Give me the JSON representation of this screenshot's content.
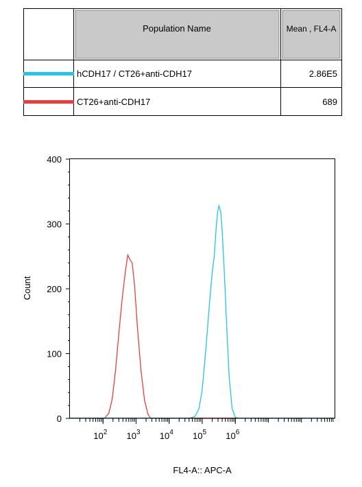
{
  "legend_table": {
    "header_name": "Population Name",
    "header_value": "Mean , FL4-A",
    "rows": [
      {
        "name": "hCDH17 / CT26+anti-CDH17",
        "value": "2.86E5",
        "color": "#22c3ef"
      },
      {
        "name": "CT26+anti-CDH17",
        "value": "689",
        "color": "#f03a3a"
      }
    ]
  },
  "chart_data": {
    "type": "line",
    "title": "",
    "xlabel": "FL4-A:: APC-A",
    "ylabel": "Count",
    "xscale": "log",
    "xlim": [
      10,
      1000000000
    ],
    "ylim": [
      0,
      400
    ],
    "y_ticks": [
      0,
      100,
      200,
      300,
      400
    ],
    "x_ticks": [
      {
        "base": "10",
        "exp": "2",
        "value": 100
      },
      {
        "base": "10",
        "exp": "3",
        "value": 1000
      },
      {
        "base": "10",
        "exp": "4",
        "value": 10000
      },
      {
        "base": "10",
        "exp": "5",
        "value": 100000
      },
      {
        "base": "10",
        "exp": "6",
        "value": 1000000
      }
    ],
    "series": [
      {
        "name": "hCDH17 / CT26+anti-CDH17",
        "color": "#22c3ef",
        "points": [
          [
            10,
            0
          ],
          [
            40000,
            0
          ],
          [
            60000,
            3
          ],
          [
            80000,
            15
          ],
          [
            100000,
            45
          ],
          [
            130000,
            110
          ],
          [
            170000,
            185
          ],
          [
            200000,
            225
          ],
          [
            230000,
            250
          ],
          [
            260000,
            290
          ],
          [
            290000,
            318
          ],
          [
            320000,
            328
          ],
          [
            360000,
            320
          ],
          [
            400000,
            290
          ],
          [
            470000,
            220
          ],
          [
            550000,
            140
          ],
          [
            650000,
            65
          ],
          [
            800000,
            15
          ],
          [
            1000000,
            2
          ],
          [
            1200000,
            0
          ],
          [
            1000000000,
            0
          ]
        ]
      },
      {
        "name": "CT26+anti-CDH17",
        "color": "#f03a3a",
        "points": [
          [
            10,
            0
          ],
          [
            110,
            0
          ],
          [
            150,
            8
          ],
          [
            190,
            30
          ],
          [
            240,
            75
          ],
          [
            300,
            130
          ],
          [
            380,
            185
          ],
          [
            470,
            225
          ],
          [
            560,
            252
          ],
          [
            650,
            245
          ],
          [
            760,
            240
          ],
          [
            900,
            205
          ],
          [
            1100,
            140
          ],
          [
            1400,
            75
          ],
          [
            1800,
            28
          ],
          [
            2300,
            6
          ],
          [
            2800,
            0
          ],
          [
            1000000000,
            0
          ]
        ]
      }
    ]
  }
}
